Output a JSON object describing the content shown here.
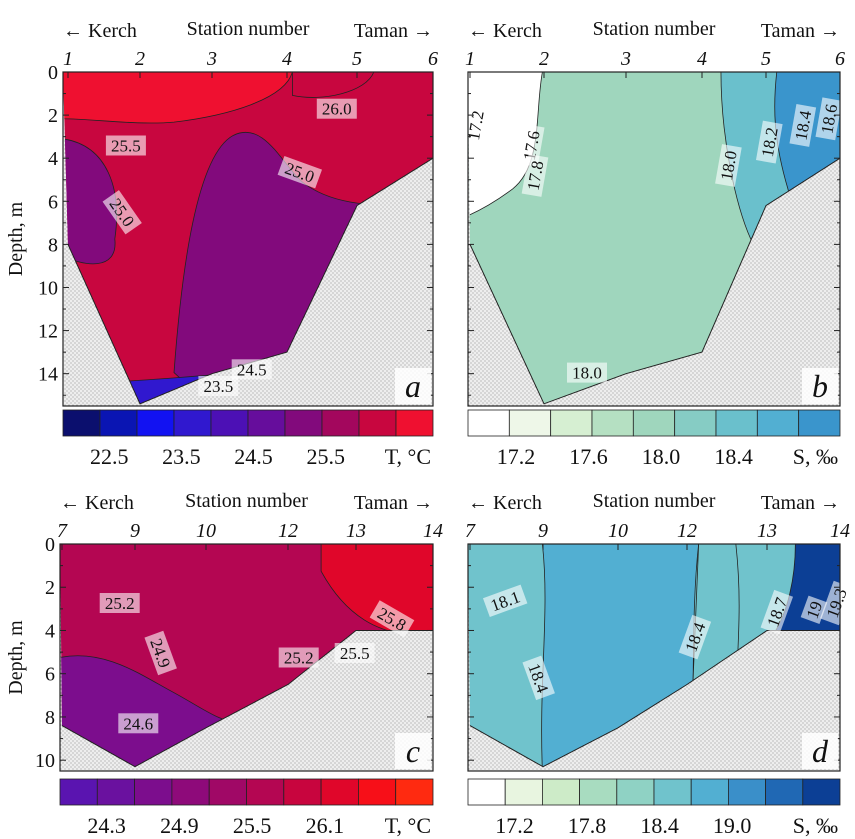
{
  "chart_data": [
    {
      "type": "heatmap",
      "panel_letter": "a",
      "top_left_label": "← Kerch",
      "top_center_label": "Station number",
      "top_right_label": "Taman →",
      "x_tick_labels": [
        "1",
        "2",
        "3",
        "4",
        "5",
        "6"
      ],
      "x": [
        1,
        2,
        3,
        4,
        5,
        6
      ],
      "ylabel": "Depth, m",
      "y_tick_labels": [
        "0",
        "2",
        "4",
        "6",
        "8",
        "10",
        "12",
        "14"
      ],
      "ylim": [
        0,
        15.5
      ],
      "seabed_depth_m": [
        8,
        15.4,
        14,
        13,
        6.2,
        4
      ],
      "field_regions": [
        {
          "name": "warm surface layer",
          "value": 25.75
        },
        {
          "name": "intermediate layer",
          "value": 25.25
        },
        {
          "name": "cold core",
          "value": 24.75
        },
        {
          "name": "bottom layer",
          "value": 23.75
        }
      ],
      "contour_labels": [
        "26.0",
        "25.5",
        "25.0",
        "25.0",
        "24.5",
        "23.5"
      ],
      "colorbar": {
        "label": "T, °C",
        "tick_labels": [
          "22.5",
          "23.5",
          "24.5",
          "25.5"
        ],
        "colors": [
          "#0b0f6e",
          "#0a15b3",
          "#1212f2",
          "#3018cf",
          "#4c10b5",
          "#660d9c",
          "#820a7c",
          "#a3075d",
          "#c8063f",
          "#ef1030"
        ]
      }
    },
    {
      "type": "heatmap",
      "panel_letter": "b",
      "top_left_label": "← Kerch",
      "top_center_label": "Station number",
      "top_right_label": "Taman →",
      "x_tick_labels": [
        "1",
        "2",
        "3",
        "4",
        "5",
        "6"
      ],
      "x": [
        1,
        2,
        3,
        4,
        5,
        6
      ],
      "ylim": [
        0,
        15.5
      ],
      "seabed_depth_m": [
        8,
        15.4,
        14,
        13,
        6.2,
        4
      ],
      "field_regions": [
        {
          "name": "coastal fresher water",
          "value": 17.3
        },
        {
          "name": "strait water",
          "value": 17.9
        },
        {
          "name": "transition",
          "value": 18.1
        },
        {
          "name": "Taman side",
          "value": 18.5
        }
      ],
      "contour_labels": [
        "17.2",
        "17.6",
        "17.8",
        "18.0",
        "18.2",
        "18.4",
        "18.6",
        "18.0"
      ],
      "colorbar": {
        "label": "S, ‰",
        "tick_labels": [
          "17.2",
          "17.6",
          "18.0",
          "18.4"
        ],
        "colors": [
          "#ffffff",
          "#eef7e8",
          "#d6efd2",
          "#b5e0c2",
          "#9fd6bd",
          "#86ccc4",
          "#6ac0cc",
          "#52afd2",
          "#3a95cc"
        ]
      }
    },
    {
      "type": "heatmap",
      "panel_letter": "c",
      "top_left_label": "← Kerch",
      "top_center_label": "Station number",
      "top_right_label": "Taman →",
      "x_tick_labels": [
        "7",
        "9",
        "10",
        "12",
        "13",
        "14"
      ],
      "x": [
        7,
        9,
        10,
        12,
        13,
        14
      ],
      "ylabel": "Depth, m",
      "y_tick_labels": [
        "0",
        "2",
        "4",
        "6",
        "8",
        "10"
      ],
      "ylim": [
        0,
        10.5
      ],
      "seabed_depth_m": [
        8.4,
        10.3,
        8.5,
        6.5,
        4,
        4
      ],
      "field_regions": [
        {
          "name": "surface layer",
          "value": 25.3
        },
        {
          "name": "warm Taman side",
          "value": 25.7
        },
        {
          "name": "cold bottom",
          "value": 24.7
        }
      ],
      "contour_labels": [
        "25.2",
        "25.2",
        "25.5",
        "25.8",
        "24.9",
        "24.6"
      ],
      "colorbar": {
        "label": "T, °C",
        "tick_labels": [
          "24.3",
          "24.9",
          "25.5",
          "26.1"
        ],
        "colors": [
          "#5a14b0",
          "#6a119f",
          "#7c0d8d",
          "#8e0a7a",
          "#a00866",
          "#b40652",
          "#c8053e",
          "#e0062a",
          "#f70f18",
          "#ff2a10"
        ]
      }
    },
    {
      "type": "heatmap",
      "panel_letter": "d",
      "top_left_label": "← Kerch",
      "top_center_label": "Station number",
      "top_right_label": "Taman →",
      "x_tick_labels": [
        "7",
        "9",
        "10",
        "12",
        "13",
        "14"
      ],
      "x": [
        7,
        9,
        10,
        12,
        13,
        14
      ],
      "ylim": [
        0,
        10.5
      ],
      "seabed_depth_m": [
        8.4,
        10.3,
        8.5,
        6.5,
        4,
        4
      ],
      "field_regions": [
        {
          "name": "Kerch side",
          "value": 18.2
        },
        {
          "name": "central tongue",
          "value": 18.5
        },
        {
          "name": "transition",
          "value": 18.3
        },
        {
          "name": "Taman side",
          "value": 19.1
        }
      ],
      "contour_labels": [
        "18.1",
        "18.4",
        "18.4",
        "18.7",
        "19",
        "19.3"
      ],
      "colorbar": {
        "label": "S, ‰",
        "tick_labels": [
          "17.2",
          "17.8",
          "18.4",
          "19.0"
        ],
        "colors": [
          "#ffffff",
          "#e8f5e0",
          "#cdebc8",
          "#a8dcc0",
          "#8fd2c4",
          "#70c3cc",
          "#52afd2",
          "#3a8fc9",
          "#2068b4",
          "#0c3f95"
        ]
      }
    }
  ]
}
